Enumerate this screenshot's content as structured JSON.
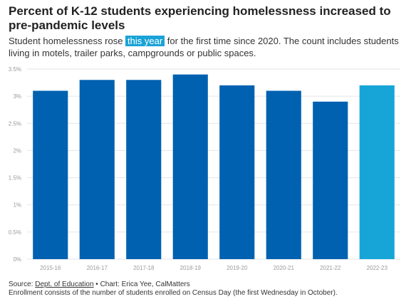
{
  "title": "Percent of K-12 students experiencing homelessness increased to pre-pandemic levels",
  "subtitle": {
    "before": "Student homelessness rose ",
    "highlight": "this year",
    "after": " for the first time since 2020. The count includes students living in motels, trailer parks, campgrounds or public spaces."
  },
  "colors": {
    "bar": "#0061b0",
    "highlight_bar": "#17a5d8",
    "grid": "#e5e5e5",
    "tick_label": "#999999"
  },
  "chart_data": {
    "type": "bar",
    "categories": [
      "2015-16",
      "2016-17",
      "2017-18",
      "2018-19",
      "2019-20",
      "2020-21",
      "2021-22",
      "2022-23"
    ],
    "values": [
      3.1,
      3.3,
      3.3,
      3.4,
      3.2,
      3.1,
      2.9,
      3.2
    ],
    "highlighted_category": "2022-23",
    "ylim": [
      0,
      3.5
    ],
    "yticks": [
      "0%",
      "0.5%",
      "1%",
      "1.5%",
      "2%",
      "2.5%",
      "3%",
      "3.5%"
    ],
    "grid": true
  },
  "footer": {
    "source_prefix": "Source: ",
    "source_link": "Dept. of Education",
    "source_suffix": " • Chart: Erica Yee, CalMatters",
    "note": "Enrollment consists of the number of students enrolled on Census Day (the first Wednesday in October)."
  }
}
